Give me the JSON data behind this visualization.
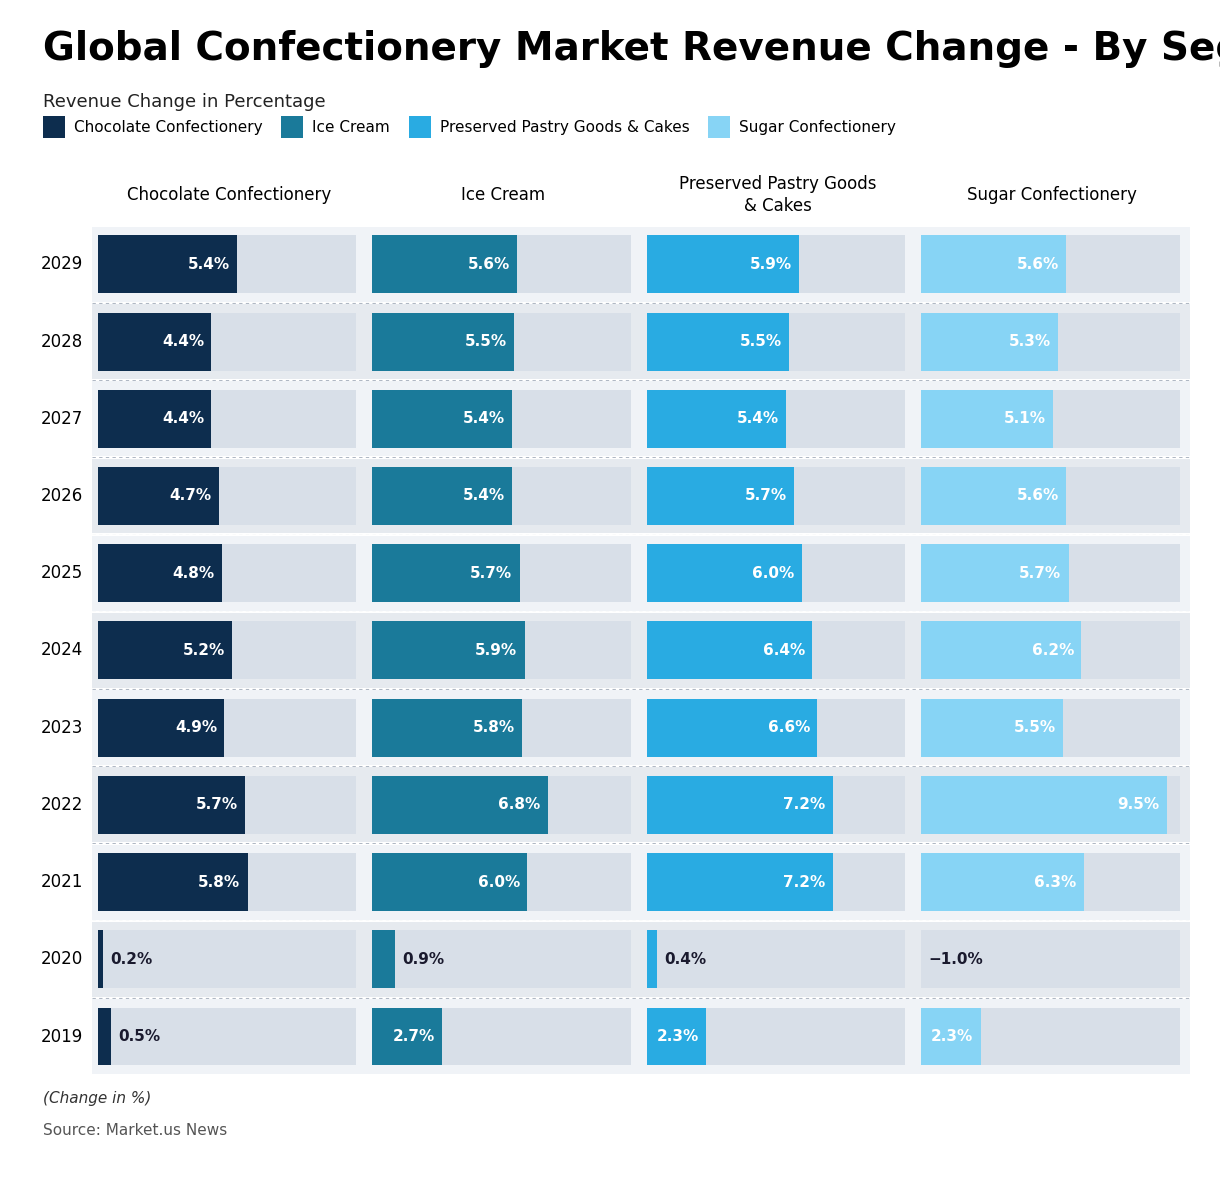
{
  "title": "Global Confectionery Market Revenue Change - By Segment",
  "subtitle": "Revenue Change in Percentage",
  "footnote": "(Change in %)",
  "source": "Source: Market.us News",
  "years": [
    2029,
    2028,
    2027,
    2026,
    2025,
    2024,
    2023,
    2022,
    2021,
    2020,
    2019
  ],
  "col_headers": [
    "Chocolate Confectionery",
    "Ice Cream",
    "Preserved Pastry Goods\n& Cakes",
    "Sugar Confectionery"
  ],
  "legend_labels": [
    "Chocolate Confectionery",
    "Ice Cream",
    "Preserved Pastry Goods & Cakes",
    "Sugar Confectionery"
  ],
  "colors": [
    "#0d2d4e",
    "#1a7a9a",
    "#29abe2",
    "#87d4f5"
  ],
  "row_bg_even": "#f0f3f7",
  "row_bg_odd": "#e6eaef",
  "bar_bg_color": "#dde3ea",
  "data": {
    "choc": [
      5.4,
      4.4,
      4.4,
      4.7,
      4.8,
      5.2,
      4.9,
      5.7,
      5.8,
      0.2,
      0.5
    ],
    "ice": [
      5.6,
      5.5,
      5.4,
      5.4,
      5.7,
      5.9,
      5.8,
      6.8,
      6.0,
      0.9,
      2.7
    ],
    "pastry": [
      5.9,
      5.5,
      5.4,
      5.7,
      6.0,
      6.4,
      6.6,
      7.2,
      7.2,
      0.4,
      2.3
    ],
    "sugar": [
      5.6,
      5.3,
      5.1,
      5.6,
      5.7,
      6.2,
      5.5,
      9.5,
      6.3,
      -1.0,
      2.3
    ]
  },
  "max_value": 10.0,
  "title_fontsize": 28,
  "subtitle_fontsize": 13,
  "legend_fontsize": 11,
  "year_fontsize": 12,
  "bar_label_fontsize": 11,
  "col_header_fontsize": 12
}
